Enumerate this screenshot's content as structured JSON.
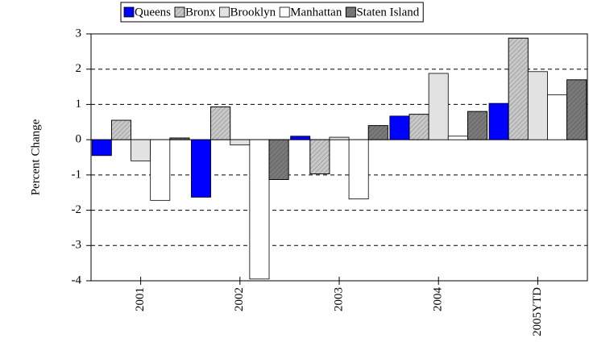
{
  "chart_data": {
    "type": "bar",
    "ylabel": "Percent Change",
    "categories": [
      "2001",
      "2002",
      "2003",
      "2004",
      "2005YTD"
    ],
    "series": [
      {
        "name": "Queens",
        "color": "#0000ff",
        "hatch": false,
        "values": [
          -0.45,
          -1.63,
          0.1,
          0.67,
          1.03
        ]
      },
      {
        "name": "Bronx",
        "color": "#c8c8c8",
        "hatch": true,
        "values": [
          0.55,
          0.93,
          -0.97,
          0.72,
          2.88
        ]
      },
      {
        "name": "Brooklyn",
        "color": "#e2e2e2",
        "hatch": false,
        "values": [
          -0.6,
          -0.15,
          0.07,
          1.88,
          1.93
        ]
      },
      {
        "name": "Manhattan",
        "color": "#ffffff",
        "hatch": false,
        "values": [
          -1.72,
          -3.95,
          -1.68,
          0.1,
          1.27
        ]
      },
      {
        "name": "Staten Island",
        "color": "#7a7a7a",
        "hatch": true,
        "values": [
          0.05,
          -1.13,
          0.4,
          0.8,
          1.7
        ]
      }
    ],
    "ylim": [
      -4,
      3
    ],
    "yticks": [
      -4,
      -3,
      -2,
      -1,
      0,
      1,
      2,
      3
    ],
    "grid": true,
    "legend": "top"
  }
}
